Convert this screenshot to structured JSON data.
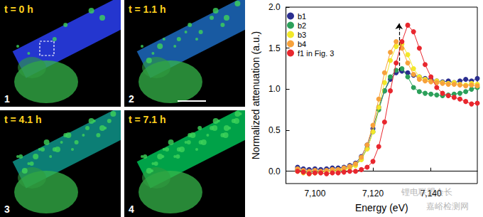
{
  "image_panels": [
    {
      "label": "1",
      "time": "t = 0 h"
    },
    {
      "label": "2",
      "time": "t = 1.1 h"
    },
    {
      "label": "3",
      "time": "t = 4.1 h"
    },
    {
      "label": "4",
      "time": "t = 7.1 h"
    }
  ],
  "chart_data": {
    "type": "line",
    "marker": "circle",
    "x_label": "Energy (eV)",
    "y_label": "Normalized attenuation (a.u.)",
    "xlim": [
      7090,
      7156
    ],
    "xticks": [
      {
        "value": 7100,
        "label": "7,100"
      },
      {
        "value": 7120,
        "label": "7,120"
      },
      {
        "value": 7140,
        "label": "7,140"
      }
    ],
    "ylim": [
      -0.15,
      2.0
    ],
    "yticks": [
      {
        "value": 0,
        "label": "0.0"
      },
      {
        "value": 0.5,
        "label": "0.5"
      },
      {
        "value": 1,
        "label": "1.0"
      },
      {
        "value": 1.5,
        "label": "1.5"
      },
      {
        "value": 2,
        "label": "2.0"
      }
    ],
    "legend": "top-left",
    "x": [
      7094,
      7096,
      7098,
      7100,
      7102,
      7104,
      7106,
      7108,
      7110,
      7112,
      7114,
      7116,
      7118,
      7120,
      7122,
      7124,
      7126,
      7128,
      7130,
      7132,
      7134,
      7136,
      7138,
      7140,
      7142,
      7144,
      7146,
      7148,
      7150,
      7152,
      7154,
      7156
    ],
    "series": [
      {
        "name": "b1",
        "color": "#2b2e8f",
        "values": [
          0.05,
          0.03,
          0.02,
          0.03,
          0.02,
          0.03,
          0.04,
          0.04,
          0.05,
          0.07,
          0.1,
          0.18,
          0.32,
          0.52,
          0.78,
          0.98,
          1.12,
          1.2,
          1.22,
          1.2,
          1.17,
          1.15,
          1.13,
          1.12,
          1.1,
          1.09,
          1.1,
          1.08,
          1.1,
          1.12,
          1.1,
          1.13
        ]
      },
      {
        "name": "b2",
        "color": "#2ca05a",
        "values": [
          0.02,
          0.0,
          -0.02,
          0.0,
          -0.01,
          0.0,
          0.01,
          0.02,
          0.03,
          0.05,
          0.08,
          0.15,
          0.28,
          0.48,
          0.75,
          0.98,
          1.15,
          1.23,
          1.25,
          1.15,
          1.02,
          0.97,
          0.95,
          0.94,
          0.93,
          0.92,
          0.93,
          0.94,
          0.95,
          0.97,
          1.0,
          1.02
        ]
      },
      {
        "name": "b3",
        "color": "#f2e829",
        "values": [
          0.0,
          -0.02,
          -0.03,
          -0.02,
          -0.01,
          0.0,
          0.0,
          0.01,
          0.02,
          0.04,
          0.07,
          0.14,
          0.27,
          0.48,
          0.78,
          1.08,
          1.35,
          1.52,
          1.55,
          1.42,
          1.25,
          1.15,
          1.12,
          1.1,
          1.1,
          1.08,
          1.07,
          1.08,
          1.06,
          1.05,
          1.07,
          1.06
        ]
      },
      {
        "name": "b4",
        "color": "#f7a23b",
        "values": [
          0.03,
          0.01,
          0.0,
          0.01,
          0.0,
          0.01,
          0.02,
          0.02,
          0.04,
          0.06,
          0.09,
          0.17,
          0.32,
          0.56,
          0.88,
          1.2,
          1.45,
          1.58,
          1.5,
          1.32,
          1.18,
          1.12,
          1.1,
          1.09,
          1.08,
          1.07,
          1.06,
          1.06,
          1.05,
          1.04,
          1.05,
          1.04
        ]
      },
      {
        "name": "f1 in Fig. 3",
        "color": "#e8272e",
        "values": [
          0.0,
          -0.01,
          -0.03,
          -0.02,
          -0.02,
          -0.03,
          -0.02,
          -0.02,
          -0.01,
          0.0,
          0.0,
          0.02,
          0.05,
          0.12,
          0.3,
          0.6,
          0.98,
          1.32,
          1.58,
          1.78,
          1.7,
          1.5,
          1.3,
          1.15,
          1.02,
          0.95,
          0.92,
          0.9,
          0.88,
          0.85,
          0.82,
          0.83
        ]
      }
    ],
    "annotations": [
      {
        "type": "arrow",
        "line_style": "dashed",
        "x": 7129,
        "y": [
          1.22,
          1.8
        ]
      },
      {
        "type": "watermark",
        "text": "锂电联盟会长"
      },
      {
        "type": "watermark",
        "text": "嘉峪检测网"
      }
    ]
  }
}
